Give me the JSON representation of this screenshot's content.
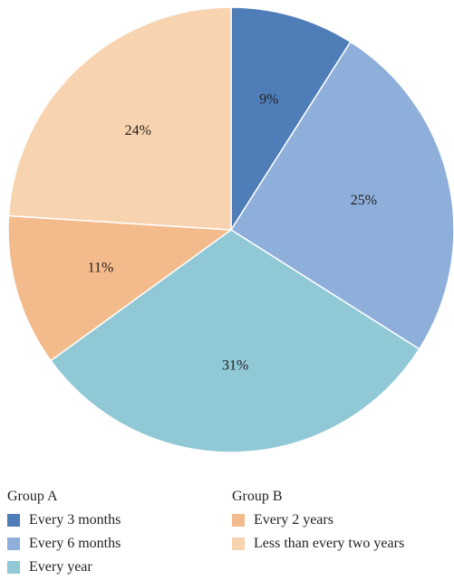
{
  "chart_data": {
    "type": "pie",
    "slices": [
      {
        "label": "Every 3 months",
        "value": 9,
        "display": "9%",
        "color": "#4e7db7"
      },
      {
        "label": "Every 6 months",
        "value": 25,
        "display": "25%",
        "color": "#8eafda"
      },
      {
        "label": "Every year",
        "value": 31,
        "display": "31%",
        "color": "#91c8d6"
      },
      {
        "label": "Every 2 years",
        "value": 11,
        "display": "11%",
        "color": "#f3bb8c"
      },
      {
        "label": "Less than every two years",
        "value": 24,
        "display": "24%",
        "color": "#f8d3b0"
      }
    ],
    "start_angle": "12 o'clock",
    "direction": "clockwise",
    "legend": {
      "placement": "bottom",
      "groups": [
        {
          "title": "Group A",
          "items": [
            "Every 3 months",
            "Every 6 months",
            "Every year"
          ]
        },
        {
          "title": "Group B",
          "items": [
            "Every 2 years",
            "Less than every two years"
          ]
        }
      ]
    }
  }
}
